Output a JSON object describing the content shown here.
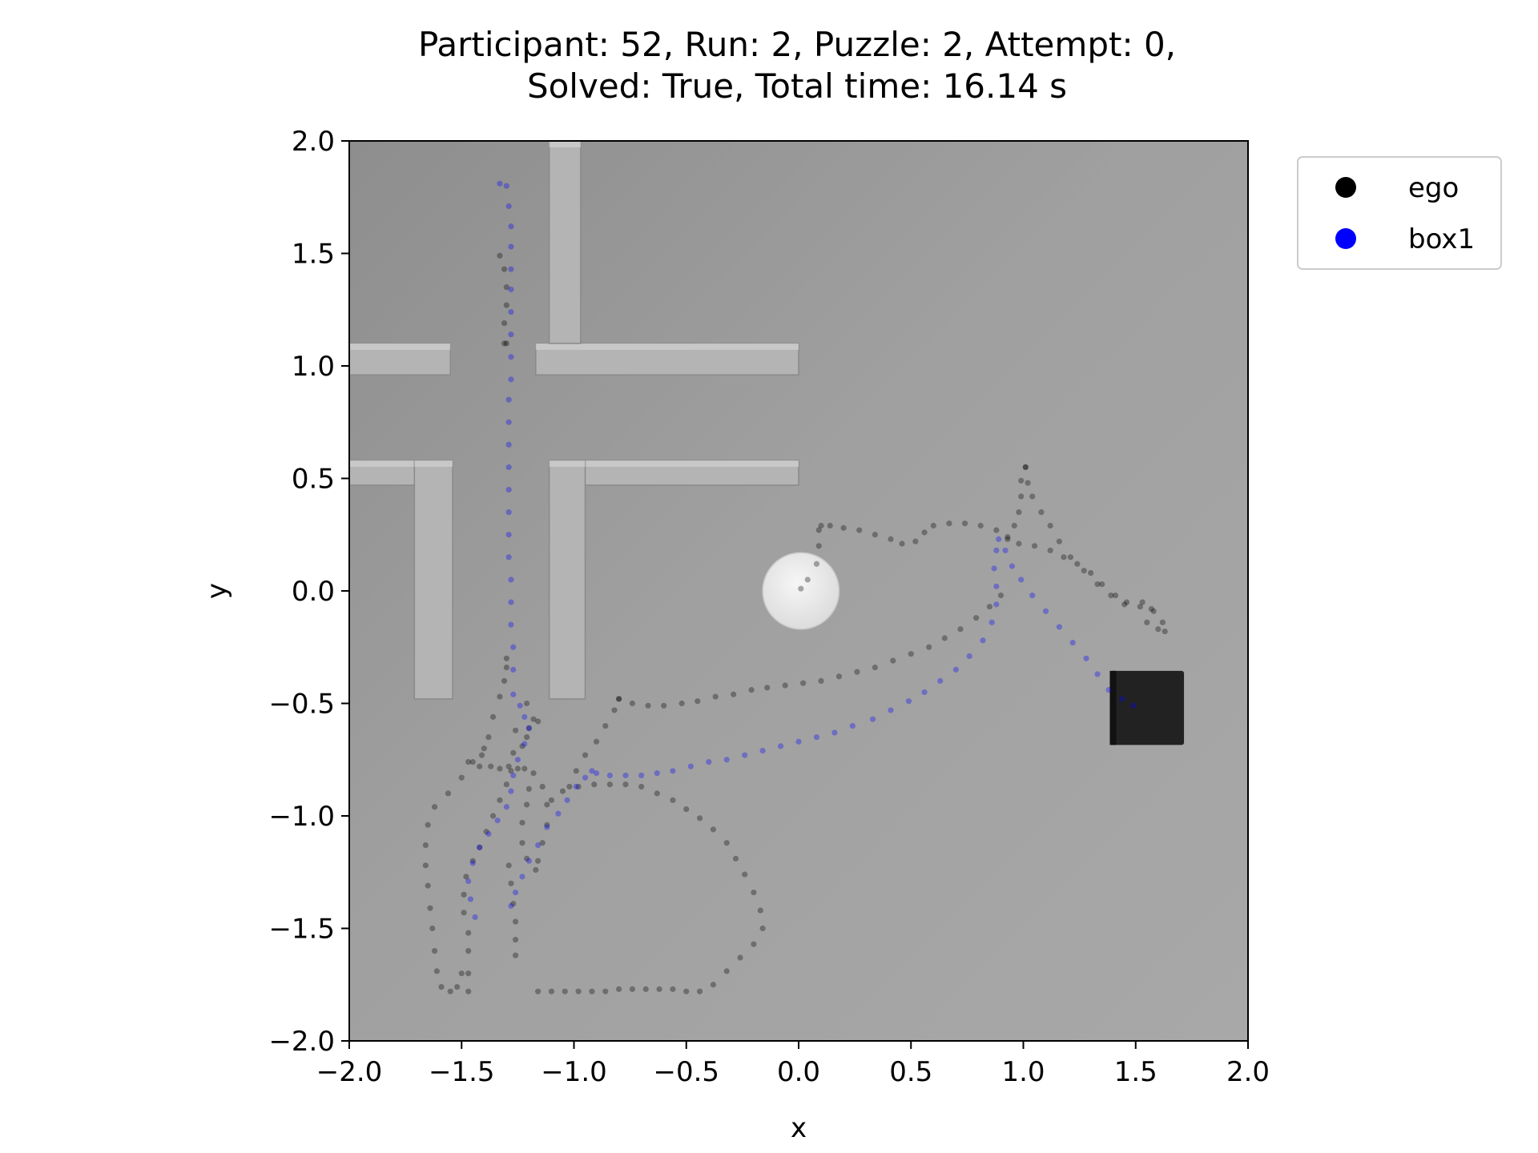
{
  "chart_data": {
    "type": "scatter",
    "title_line1": "Participant: 52, Run: 2, Puzzle: 2, Attempt: 0,",
    "title_line2": "Solved: True, Total time: 16.14 s",
    "xlabel": "x",
    "ylabel": "y",
    "xlim": [
      -2.0,
      2.0
    ],
    "ylim": [
      -2.0,
      2.0
    ],
    "xticks": [
      "−2.0",
      "−1.5",
      "−1.0",
      "−0.5",
      "0.0",
      "0.5",
      "1.0",
      "1.5",
      "2.0"
    ],
    "yticks": [
      "−2.0",
      "−1.5",
      "−1.0",
      "−0.5",
      "0.0",
      "0.5",
      "1.0",
      "1.5",
      "2.0"
    ],
    "grid": false,
    "legend_position": "outside-top-right",
    "background_scene": {
      "floor_color": "#a3a3a3",
      "walls_color": "#b4b4b4",
      "target_disk": {
        "x": 0.01,
        "y": 0.0,
        "r": 0.17,
        "color": "#eeeeee"
      },
      "box_object": {
        "x": 1.55,
        "y": -0.52,
        "size": 0.33,
        "color": "#222222"
      }
    },
    "series": [
      {
        "name": "ego",
        "color": "#000000",
        "points": [
          [
            -1.33,
            1.49
          ],
          [
            -1.31,
            1.43
          ],
          [
            -1.3,
            1.35
          ],
          [
            -1.3,
            1.27
          ],
          [
            -1.31,
            1.19
          ],
          [
            -1.31,
            1.1
          ],
          [
            -1.3,
            1.1
          ],
          [
            -1.3,
            -0.3
          ],
          [
            -1.3,
            -0.34
          ],
          [
            -1.31,
            -0.4
          ],
          [
            -1.33,
            -0.47
          ],
          [
            -1.36,
            -0.56
          ],
          [
            -1.38,
            -0.65
          ],
          [
            -1.41,
            -0.73
          ],
          [
            -1.47,
            -0.76
          ],
          [
            -1.42,
            -0.78
          ],
          [
            -1.37,
            -0.78
          ],
          [
            -1.33,
            -0.79
          ],
          [
            -1.29,
            -0.78
          ],
          [
            -1.25,
            -0.79
          ],
          [
            -1.21,
            -0.5
          ],
          [
            -1.21,
            -0.65
          ],
          [
            -1.22,
            -0.79
          ],
          [
            -1.2,
            -0.88
          ],
          [
            -1.21,
            -0.95
          ],
          [
            -1.23,
            -1.03
          ],
          [
            -1.23,
            -1.12
          ],
          [
            -1.21,
            -1.19
          ],
          [
            -1.17,
            -1.24
          ],
          [
            -1.18,
            -0.57
          ],
          [
            -1.16,
            -0.58
          ],
          [
            -1.2,
            -0.61
          ],
          [
            -1.23,
            -0.69
          ],
          [
            -1.18,
            -0.81
          ],
          [
            -1.14,
            -0.87
          ],
          [
            -1.12,
            -0.95
          ],
          [
            -1.12,
            -1.04
          ],
          [
            -1.14,
            -1.12
          ],
          [
            -1.16,
            -1.2
          ],
          [
            -1.26,
            -0.62
          ],
          [
            -1.27,
            -0.72
          ],
          [
            -1.28,
            -0.8
          ],
          [
            -1.3,
            -0.86
          ],
          [
            -1.33,
            -0.93
          ],
          [
            -1.36,
            -1.0
          ],
          [
            -1.39,
            -1.07
          ],
          [
            -1.42,
            -1.14
          ],
          [
            -1.45,
            -1.2
          ],
          [
            -1.48,
            -1.27
          ],
          [
            -1.49,
            -1.35
          ],
          [
            -1.49,
            -1.43
          ],
          [
            -1.47,
            -1.52
          ],
          [
            -1.47,
            -1.6
          ],
          [
            -1.47,
            -1.7
          ],
          [
            -1.47,
            -1.78
          ],
          [
            -1.4,
            -0.7
          ],
          [
            -1.45,
            -0.76
          ],
          [
            -1.5,
            -0.83
          ],
          [
            -1.56,
            -0.9
          ],
          [
            -1.62,
            -0.96
          ],
          [
            -1.65,
            -1.04
          ],
          [
            -1.66,
            -1.13
          ],
          [
            -1.66,
            -1.22
          ],
          [
            -1.65,
            -1.31
          ],
          [
            -1.64,
            -1.41
          ],
          [
            -1.63,
            -1.5
          ],
          [
            -1.62,
            -1.6
          ],
          [
            -1.61,
            -1.69
          ],
          [
            -1.59,
            -1.76
          ],
          [
            -1.55,
            -1.78
          ],
          [
            -1.52,
            -1.76
          ],
          [
            -1.5,
            -1.7
          ],
          [
            -1.26,
            -1.62
          ],
          [
            -1.26,
            -1.55
          ],
          [
            -1.26,
            -1.47
          ],
          [
            -1.27,
            -1.39
          ],
          [
            -1.28,
            -1.3
          ],
          [
            -1.29,
            -1.22
          ],
          [
            -1.16,
            -1.78
          ],
          [
            -1.1,
            -1.78
          ],
          [
            -1.04,
            -1.78
          ],
          [
            -0.98,
            -1.78
          ],
          [
            -0.92,
            -1.78
          ],
          [
            -0.86,
            -1.78
          ],
          [
            -0.8,
            -1.77
          ],
          [
            -0.74,
            -1.77
          ],
          [
            -0.68,
            -1.77
          ],
          [
            -0.62,
            -1.77
          ],
          [
            -0.56,
            -1.77
          ],
          [
            -0.5,
            -1.78
          ],
          [
            -0.44,
            -1.78
          ],
          [
            -0.38,
            -1.75
          ],
          [
            -0.32,
            -1.69
          ],
          [
            -0.26,
            -1.63
          ],
          [
            -0.2,
            -1.57
          ],
          [
            -0.16,
            -1.5
          ],
          [
            -0.17,
            -1.42
          ],
          [
            -0.2,
            -1.34
          ],
          [
            -0.24,
            -1.26
          ],
          [
            -0.28,
            -1.19
          ],
          [
            -0.32,
            -1.12
          ],
          [
            -0.38,
            -1.06
          ],
          [
            -0.44,
            -1.01
          ],
          [
            -0.5,
            -0.97
          ],
          [
            -0.56,
            -0.93
          ],
          [
            -0.63,
            -0.9
          ],
          [
            -0.7,
            -0.87
          ],
          [
            -0.77,
            -0.86
          ],
          [
            -0.84,
            -0.86
          ],
          [
            -0.91,
            -0.86
          ],
          [
            -0.98,
            -0.87
          ],
          [
            -1.05,
            -0.89
          ],
          [
            -1.1,
            -0.93
          ],
          [
            -0.8,
            -0.48
          ],
          [
            -0.82,
            -0.53
          ],
          [
            -0.86,
            -0.6
          ],
          [
            -0.9,
            -0.67
          ],
          [
            -0.95,
            -0.73
          ],
          [
            -0.99,
            -0.8
          ],
          [
            -1.02,
            -0.87
          ],
          [
            -0.8,
            -0.48
          ],
          [
            -0.74,
            -0.5
          ],
          [
            -0.67,
            -0.51
          ],
          [
            -0.6,
            -0.51
          ],
          [
            -0.52,
            -0.5
          ],
          [
            -0.45,
            -0.49
          ],
          [
            -0.37,
            -0.47
          ],
          [
            -0.29,
            -0.46
          ],
          [
            -0.21,
            -0.44
          ],
          [
            -0.14,
            -0.43
          ],
          [
            -0.06,
            -0.42
          ],
          [
            0.02,
            -0.41
          ],
          [
            0.1,
            -0.4
          ],
          [
            0.18,
            -0.38
          ],
          [
            0.26,
            -0.36
          ],
          [
            0.34,
            -0.34
          ],
          [
            0.42,
            -0.31
          ],
          [
            0.5,
            -0.28
          ],
          [
            0.58,
            -0.25
          ],
          [
            0.65,
            -0.21
          ],
          [
            0.72,
            -0.17
          ],
          [
            0.79,
            -0.12
          ],
          [
            0.85,
            -0.07
          ],
          [
            0.9,
            -0.02
          ],
          [
            0.01,
            0.01
          ],
          [
            0.04,
            0.05
          ],
          [
            0.08,
            0.12
          ],
          [
            0.09,
            0.2
          ],
          [
            0.09,
            0.27
          ],
          [
            0.1,
            0.29
          ],
          [
            0.14,
            0.29
          ],
          [
            0.2,
            0.28
          ],
          [
            0.27,
            0.27
          ],
          [
            0.34,
            0.25
          ],
          [
            0.41,
            0.23
          ],
          [
            0.46,
            0.21
          ],
          [
            0.52,
            0.22
          ],
          [
            0.56,
            0.26
          ],
          [
            0.6,
            0.29
          ],
          [
            0.67,
            0.3
          ],
          [
            0.74,
            0.3
          ],
          [
            0.81,
            0.29
          ],
          [
            0.88,
            0.27
          ],
          [
            0.93,
            0.24
          ],
          [
            0.98,
            0.21
          ],
          [
            1.05,
            0.2
          ],
          [
            1.12,
            0.18
          ],
          [
            1.18,
            0.15
          ],
          [
            1.24,
            0.12
          ],
          [
            1.3,
            0.08
          ],
          [
            1.35,
            0.03
          ],
          [
            1.41,
            -0.02
          ],
          [
            1.46,
            -0.05
          ],
          [
            1.53,
            -0.05
          ],
          [
            1.58,
            -0.09
          ],
          [
            1.62,
            -0.14
          ],
          [
            1.63,
            -0.18
          ],
          [
            1.6,
            -0.17
          ],
          [
            1.55,
            -0.14
          ],
          [
            1.01,
            0.55
          ],
          [
            1.02,
            0.48
          ],
          [
            1.04,
            0.42
          ],
          [
            1.08,
            0.35
          ],
          [
            1.12,
            0.29
          ],
          [
            1.16,
            0.22
          ],
          [
            1.21,
            0.15
          ],
          [
            1.27,
            0.09
          ],
          [
            1.33,
            0.03
          ],
          [
            1.39,
            -0.02
          ],
          [
            1.45,
            -0.06
          ],
          [
            1.52,
            -0.07
          ],
          [
            1.57,
            -0.08
          ],
          [
            1.01,
            0.55
          ],
          [
            0.99,
            0.49
          ],
          [
            0.99,
            0.42
          ],
          [
            0.98,
            0.35
          ],
          [
            0.96,
            0.29
          ],
          [
            0.93,
            0.23
          ]
        ]
      },
      {
        "name": "box1",
        "color": "#0000ff",
        "points": [
          [
            -1.33,
            1.81
          ],
          [
            -1.3,
            1.8
          ],
          [
            -1.29,
            1.71
          ],
          [
            -1.28,
            1.62
          ],
          [
            -1.28,
            1.53
          ],
          [
            -1.28,
            1.43
          ],
          [
            -1.28,
            1.34
          ],
          [
            -1.28,
            1.24
          ],
          [
            -1.28,
            1.14
          ],
          [
            -1.28,
            1.04
          ],
          [
            -1.28,
            0.94
          ],
          [
            -1.29,
            0.85
          ],
          [
            -1.29,
            0.75
          ],
          [
            -1.29,
            0.65
          ],
          [
            -1.29,
            0.55
          ],
          [
            -1.29,
            0.45
          ],
          [
            -1.29,
            0.35
          ],
          [
            -1.29,
            0.25
          ],
          [
            -1.29,
            0.15
          ],
          [
            -1.28,
            0.05
          ],
          [
            -1.28,
            -0.05
          ],
          [
            -1.28,
            -0.15
          ],
          [
            -1.27,
            -0.25
          ],
          [
            -1.27,
            -0.35
          ],
          [
            -1.27,
            -0.46
          ],
          [
            -1.24,
            -0.51
          ],
          [
            -1.22,
            -0.56
          ],
          [
            -1.2,
            -0.61
          ],
          [
            -1.22,
            -0.68
          ],
          [
            -1.25,
            -0.75
          ],
          [
            -1.27,
            -0.82
          ],
          [
            -1.28,
            -0.89
          ],
          [
            -1.3,
            -0.96
          ],
          [
            -1.34,
            -1.02
          ],
          [
            -1.38,
            -1.08
          ],
          [
            -1.42,
            -1.14
          ],
          [
            -1.45,
            -1.21
          ],
          [
            -1.47,
            -1.29
          ],
          [
            -1.46,
            -1.37
          ],
          [
            -1.44,
            -1.45
          ],
          [
            -1.28,
            -1.4
          ],
          [
            -1.26,
            -1.34
          ],
          [
            -1.23,
            -1.27
          ],
          [
            -1.2,
            -1.2
          ],
          [
            -1.16,
            -1.13
          ],
          [
            -1.12,
            -1.05
          ],
          [
            -1.07,
            -0.99
          ],
          [
            -1.03,
            -0.93
          ],
          [
            -0.99,
            -0.87
          ],
          [
            -0.95,
            -0.83
          ],
          [
            -0.92,
            -0.8
          ],
          [
            -0.9,
            -0.81
          ],
          [
            -0.84,
            -0.82
          ],
          [
            -0.77,
            -0.82
          ],
          [
            -0.7,
            -0.82
          ],
          [
            -0.63,
            -0.81
          ],
          [
            -0.56,
            -0.8
          ],
          [
            -0.48,
            -0.78
          ],
          [
            -0.4,
            -0.76
          ],
          [
            -0.32,
            -0.75
          ],
          [
            -0.24,
            -0.73
          ],
          [
            -0.16,
            -0.71
          ],
          [
            -0.08,
            -0.69
          ],
          [
            0.0,
            -0.67
          ],
          [
            0.08,
            -0.65
          ],
          [
            0.16,
            -0.63
          ],
          [
            0.24,
            -0.6
          ],
          [
            0.33,
            -0.57
          ],
          [
            0.41,
            -0.53
          ],
          [
            0.49,
            -0.49
          ],
          [
            0.56,
            -0.45
          ],
          [
            0.63,
            -0.4
          ],
          [
            0.7,
            -0.35
          ],
          [
            0.76,
            -0.29
          ],
          [
            0.82,
            -0.22
          ],
          [
            0.86,
            -0.14
          ],
          [
            0.88,
            -0.06
          ],
          [
            0.88,
            0.02
          ],
          [
            0.87,
            0.1
          ],
          [
            0.88,
            0.18
          ],
          [
            0.89,
            0.23
          ],
          [
            0.92,
            0.18
          ],
          [
            0.95,
            0.11
          ],
          [
            0.99,
            0.05
          ],
          [
            1.04,
            -0.02
          ],
          [
            1.1,
            -0.09
          ],
          [
            1.16,
            -0.16
          ],
          [
            1.22,
            -0.23
          ],
          [
            1.28,
            -0.3
          ],
          [
            1.33,
            -0.37
          ],
          [
            1.38,
            -0.44
          ],
          [
            1.44,
            -0.48
          ],
          [
            1.49,
            -0.51
          ]
        ]
      }
    ],
    "legend": [
      {
        "label": "ego",
        "color": "#000000"
      },
      {
        "label": "box1",
        "color": "#0000ff"
      }
    ]
  }
}
